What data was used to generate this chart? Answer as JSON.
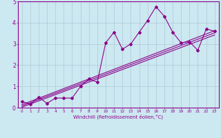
{
  "xlabel": "Windchill (Refroidissement éolien,°C)",
  "bg_color": "#cce8f0",
  "line_color": "#8b008b",
  "grid_color": "#b0c8d8",
  "xlim": [
    -0.5,
    23.5
  ],
  "ylim": [
    0,
    5
  ],
  "xticks": [
    0,
    1,
    2,
    3,
    4,
    5,
    6,
    7,
    8,
    9,
    10,
    11,
    12,
    13,
    14,
    15,
    16,
    17,
    18,
    19,
    20,
    21,
    22,
    23
  ],
  "yticks": [
    0,
    1,
    2,
    3,
    4,
    5
  ],
  "data_x": [
    0,
    1,
    2,
    3,
    4,
    5,
    6,
    7,
    8,
    9,
    10,
    11,
    12,
    13,
    14,
    15,
    16,
    17,
    18,
    19,
    20,
    21,
    22,
    23
  ],
  "data_y": [
    0.3,
    0.15,
    0.5,
    0.2,
    0.45,
    0.45,
    0.45,
    1.0,
    1.35,
    1.2,
    3.05,
    3.55,
    2.75,
    3.0,
    3.55,
    4.1,
    4.75,
    4.3,
    3.55,
    3.05,
    3.1,
    2.7,
    3.7,
    3.6
  ],
  "reg_line_pts": [
    [
      0,
      0.08
    ],
    [
      23,
      3.52
    ]
  ],
  "reg_line2_pts": [
    [
      0,
      0.02
    ],
    [
      23,
      3.42
    ]
  ],
  "reg_line3_pts": [
    [
      0,
      0.14
    ],
    [
      23,
      3.62
    ]
  ]
}
